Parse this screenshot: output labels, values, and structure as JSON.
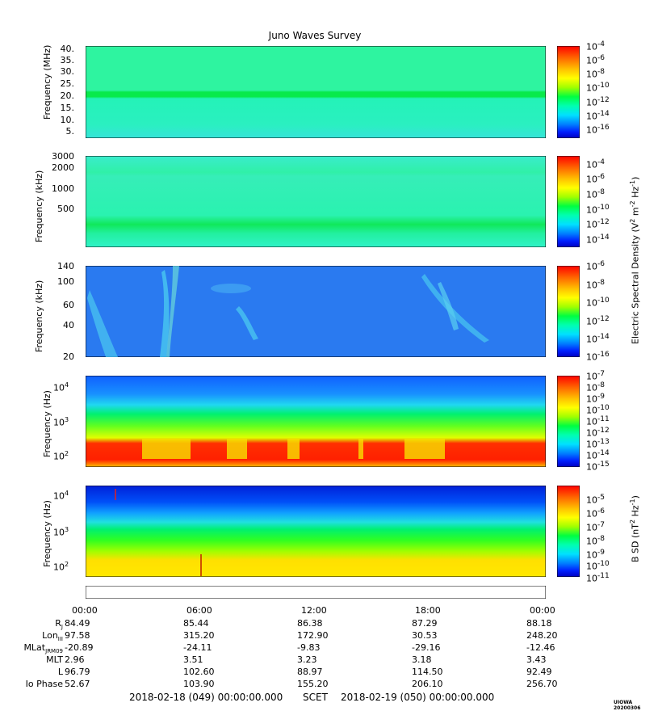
{
  "chart_data": {
    "type": "heatmap",
    "title": "Juno Waves Survey",
    "panels": [
      {
        "name": "electric-mhz",
        "ylabel": "Frequency (MHz)",
        "yticks": [
          "40.",
          "35.",
          "30.",
          "25.",
          "20.",
          "15.",
          "10.",
          "5."
        ],
        "colorbar_ticks": [
          "-4",
          "-6",
          "-8",
          "-10",
          "-12",
          "-14",
          "-16"
        ]
      },
      {
        "name": "electric-khz-high",
        "ylabel": "Frequency (kHz)",
        "yticks": [
          "3000",
          "2000",
          "1000",
          "500"
        ],
        "colorbar_ticks": [
          "-4",
          "-6",
          "-8",
          "-10",
          "-12",
          "-14"
        ]
      },
      {
        "name": "electric-khz-low",
        "ylabel": "Frequency (kHz)",
        "yticks": [
          "140",
          "100",
          "60",
          "40",
          "20"
        ],
        "colorbar_ticks": [
          "-6",
          "-8",
          "-10",
          "-12",
          "-14",
          "-16"
        ]
      },
      {
        "name": "electric-hz",
        "ylabel": "Frequency (Hz)",
        "yticks": [
          "4",
          "3",
          "2"
        ],
        "colorbar_ticks": [
          "-7",
          "-8",
          "-9",
          "-10",
          "-11",
          "-12",
          "-13",
          "-14",
          "-15"
        ]
      },
      {
        "name": "magnetic-hz",
        "ylabel": "Frequency (Hz)",
        "yticks": [
          "4",
          "3",
          "2"
        ],
        "colorbar_ticks": [
          "-5",
          "-6",
          "-7",
          "-8",
          "-9",
          "-10",
          "-11"
        ]
      }
    ],
    "colorbar_base": "10",
    "electric_colorbar_label": {
      "pre": "Electric Spectral Density (V",
      "e1": "2",
      "mid": " m",
      "e2": "-2",
      "post": " Hz",
      "e3": "-1",
      "end": ")"
    },
    "magnetic_colorbar_label": {
      "pre": "B SD (nT",
      "e1": "2",
      "mid": " Hz",
      "e2": "-1",
      "end": ")"
    },
    "ytick_base": "10",
    "x_time_labels": [
      "00:00",
      "06:00",
      "12:00",
      "18:00",
      "00:00"
    ],
    "ephemeris": {
      "rows": [
        {
          "label": "R",
          "sub": "J",
          "values": [
            "84.49",
            "85.44",
            "86.38",
            "87.29",
            "88.18"
          ]
        },
        {
          "label": "Lon",
          "sub": "III",
          "values": [
            "97.58",
            "315.20",
            "172.90",
            "30.53",
            "248.20"
          ]
        },
        {
          "label": "MLat",
          "sub": "JRM09",
          "values": [
            "-20.89",
            "-24.11",
            "-9.83",
            "-29.16",
            "-12.46"
          ]
        },
        {
          "label": "MLT",
          "sub": "",
          "values": [
            "2.96",
            "3.51",
            "3.23",
            "3.18",
            "3.43"
          ]
        },
        {
          "label": "L",
          "sub": "",
          "values": [
            "96.79",
            "102.60",
            "88.97",
            "114.50",
            "92.49"
          ]
        },
        {
          "label": "Io Phase",
          "sub": "",
          "values": [
            "52.67",
            "103.90",
            "155.20",
            "206.10",
            "256.70"
          ]
        }
      ]
    },
    "footer": {
      "start": "2018-02-18 (049) 00:00:00.000",
      "middle": "SCET",
      "end": "2018-02-19 (050) 00:00:00.000"
    },
    "stamp": "UIOWA 20200306"
  },
  "colors": {
    "colorbar": [
      "#ff0000",
      "#ff6000",
      "#ffc000",
      "#ffff00",
      "#a0ff00",
      "#00ff40",
      "#00ffb0",
      "#00e0ff",
      "#0080ff",
      "#0020ff",
      "#0000c0"
    ]
  }
}
